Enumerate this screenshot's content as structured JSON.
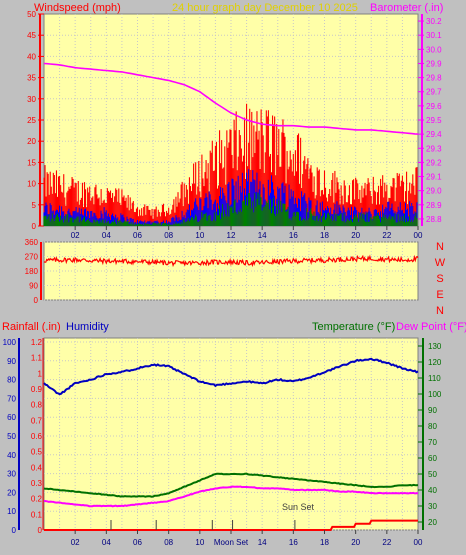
{
  "header": {
    "left_label": "Windspeed (mph)",
    "center_label": "24 hour graph day   December 10 2025",
    "right_label": "Barometer (.in)"
  },
  "bottom_header": {
    "left_label": "Rainfall (.in)",
    "humidity_label": "Humidity",
    "temp_label": "Temperature (°F)",
    "dew_label": "Dew Point (°F)"
  },
  "x_ticks": [
    "02",
    "04",
    "06",
    "08",
    "10",
    "12",
    "14",
    "16",
    "18",
    "20",
    "22",
    "00"
  ],
  "bottom_x_ticks": [
    "02",
    "04",
    "06",
    "08",
    "10",
    "Moon Set",
    "14",
    "16",
    "18",
    "20",
    "22",
    "00"
  ],
  "annotation_sunset": "Sun Set",
  "compass_letters": [
    "N",
    "W",
    "S",
    "E",
    "N"
  ],
  "colors": {
    "panel_bg": "#ffffa8",
    "outer_bg": "#c0c0c0",
    "wind": "#ff0000",
    "gust_mid": "#0000ff",
    "gust_low": "#008000",
    "barometer": "#ff00ff",
    "humidity": "#0000c0",
    "temperature": "#007000",
    "dewpoint": "#ff00ff",
    "rain": "#ff0000",
    "title_yellow": "#e0d000"
  },
  "chart_data": [
    {
      "type": "line",
      "title": "24 hour graph day   December 10 2025",
      "xlabel": "",
      "ylabel_left": "Windspeed (mph)",
      "ylabel_right": "Barometer (.in)",
      "x_tick_labels": [
        "02",
        "04",
        "06",
        "08",
        "10",
        "12",
        "14",
        "16",
        "18",
        "20",
        "22",
        "00"
      ],
      "y_left_ticks": [
        0,
        5,
        10,
        15,
        20,
        25,
        30,
        35,
        40,
        45,
        50
      ],
      "y_right_ticks": [
        28.8,
        28.9,
        29.0,
        29.1,
        29.2,
        29.3,
        29.4,
        29.5,
        29.6,
        29.7,
        29.8,
        29.9,
        30.0,
        30.1,
        30.2
      ],
      "ylim_left": [
        0,
        50
      ],
      "ylim_right": [
        28.75,
        30.25
      ],
      "hours": [
        0,
        1,
        2,
        3,
        4,
        5,
        6,
        7,
        8,
        9,
        10,
        11,
        12,
        13,
        14,
        15,
        16,
        17,
        18,
        19,
        20,
        21,
        22,
        23,
        24
      ],
      "series": [
        {
          "name": "Windspeed (mph)",
          "axis": "left",
          "values": [
            10,
            9,
            8,
            8,
            7,
            6,
            4,
            3,
            4,
            8,
            12,
            15,
            18,
            20,
            20,
            19,
            17,
            13,
            10,
            9,
            8,
            8,
            9,
            9,
            10
          ]
        },
        {
          "name": "",
          "axis": "left",
          "values": [
            4,
            4,
            3,
            3,
            3,
            2,
            1,
            1,
            1,
            3,
            5,
            6,
            8,
            9,
            9,
            8,
            7,
            5,
            4,
            4,
            3,
            3,
            4,
            4,
            4
          ]
        },
        {
          "name": "",
          "axis": "left",
          "values": [
            2,
            2,
            2,
            1,
            1,
            1,
            0.5,
            0.5,
            0.5,
            1,
            2,
            3,
            4,
            5,
            5,
            4,
            3,
            3,
            2,
            2,
            2,
            2,
            2,
            2,
            2
          ]
        },
        {
          "name": "Barometer (.in)",
          "axis": "right",
          "values": [
            29.9,
            29.89,
            29.87,
            29.86,
            29.85,
            29.84,
            29.82,
            29.8,
            29.78,
            29.75,
            29.7,
            29.62,
            29.55,
            29.5,
            29.47,
            29.46,
            29.46,
            29.45,
            29.45,
            29.44,
            29.43,
            29.43,
            29.42,
            29.41,
            29.4
          ]
        }
      ]
    },
    {
      "type": "line",
      "title": "",
      "ylabel": "",
      "y_ticks": [
        0,
        90,
        180,
        270,
        360
      ],
      "ylim": [
        0,
        360
      ],
      "compass_labels": [
        "N",
        "W",
        "S",
        "E",
        "N"
      ],
      "x_tick_labels": [
        "02",
        "04",
        "06",
        "08",
        "10",
        "12",
        "14",
        "16",
        "18",
        "20",
        "22",
        "00"
      ],
      "hours": [
        0,
        1,
        2,
        3,
        4,
        5,
        6,
        7,
        8,
        9,
        10,
        11,
        12,
        13,
        14,
        15,
        16,
        17,
        18,
        19,
        20,
        21,
        22,
        23,
        24
      ],
      "series": [
        {
          "name": "",
          "values": [
            245,
            248,
            250,
            245,
            242,
            240,
            238,
            235,
            230,
            228,
            232,
            235,
            236,
            230,
            232,
            238,
            242,
            245,
            248,
            252,
            255,
            258,
            252,
            248,
            255
          ]
        }
      ]
    },
    {
      "type": "line",
      "title": "",
      "ylabel_left": "Rainfall (.in)",
      "ylabel_left2": "Humidity",
      "ylabel_right": "Temperature (°F) Dew Point (°F)",
      "x_tick_labels": [
        "02",
        "04",
        "06",
        "08",
        "10",
        "Moon Set",
        "14",
        "16",
        "18",
        "20",
        "22",
        "00"
      ],
      "humidity_ticks": [
        0,
        10,
        20,
        30,
        40,
        50,
        60,
        70,
        80,
        90,
        100
      ],
      "rain_ticks": [
        0,
        0.1,
        0.2,
        0.3,
        0.4,
        0.5,
        0.6,
        0.7,
        0.8,
        0.9,
        1,
        1.1,
        1.2
      ],
      "temp_ticks": [
        20,
        30,
        40,
        50,
        60,
        70,
        80,
        90,
        100,
        110,
        120,
        130
      ],
      "ylim_humidity": [
        0,
        100
      ],
      "ylim_rain": [
        0,
        1.2
      ],
      "ylim_temp": [
        15,
        135
      ],
      "annotations": [
        "Sun Set",
        "Moon Set"
      ],
      "hours": [
        0,
        1,
        2,
        3,
        4,
        5,
        6,
        7,
        8,
        9,
        10,
        11,
        12,
        13,
        14,
        15,
        16,
        17,
        18,
        19,
        20,
        21,
        22,
        23,
        24
      ],
      "series": [
        {
          "name": "Humidity",
          "axis": "humidity",
          "values": [
            78,
            72,
            78,
            80,
            83,
            84,
            86,
            88,
            87,
            83,
            79,
            77,
            78,
            79,
            78,
            80,
            79,
            81,
            84,
            87,
            90,
            91,
            89,
            86,
            84
          ]
        },
        {
          "name": "Temperature (°F)",
          "axis": "temp",
          "values": [
            41,
            40,
            39,
            38,
            37,
            36,
            36,
            36,
            38,
            42,
            46,
            50,
            50,
            50,
            49,
            48,
            47,
            46,
            45,
            44,
            43,
            42,
            42,
            43,
            43
          ]
        },
        {
          "name": "Dew Point (°F)",
          "axis": "temp",
          "values": [
            33,
            32,
            31,
            30,
            30,
            30,
            31,
            32,
            33,
            36,
            39,
            41,
            42,
            42,
            41,
            41,
            40,
            40,
            40,
            39,
            39,
            38,
            38,
            38,
            38
          ]
        },
        {
          "name": "Rainfall (.in)",
          "axis": "rain",
          "values": [
            0,
            0,
            0,
            0,
            0,
            0,
            0,
            0,
            0,
            0,
            0,
            0,
            0,
            0,
            0,
            0,
            0,
            0,
            0,
            0.02,
            0.03,
            0.05,
            0.06,
            0.06,
            0.06
          ]
        }
      ]
    }
  ]
}
